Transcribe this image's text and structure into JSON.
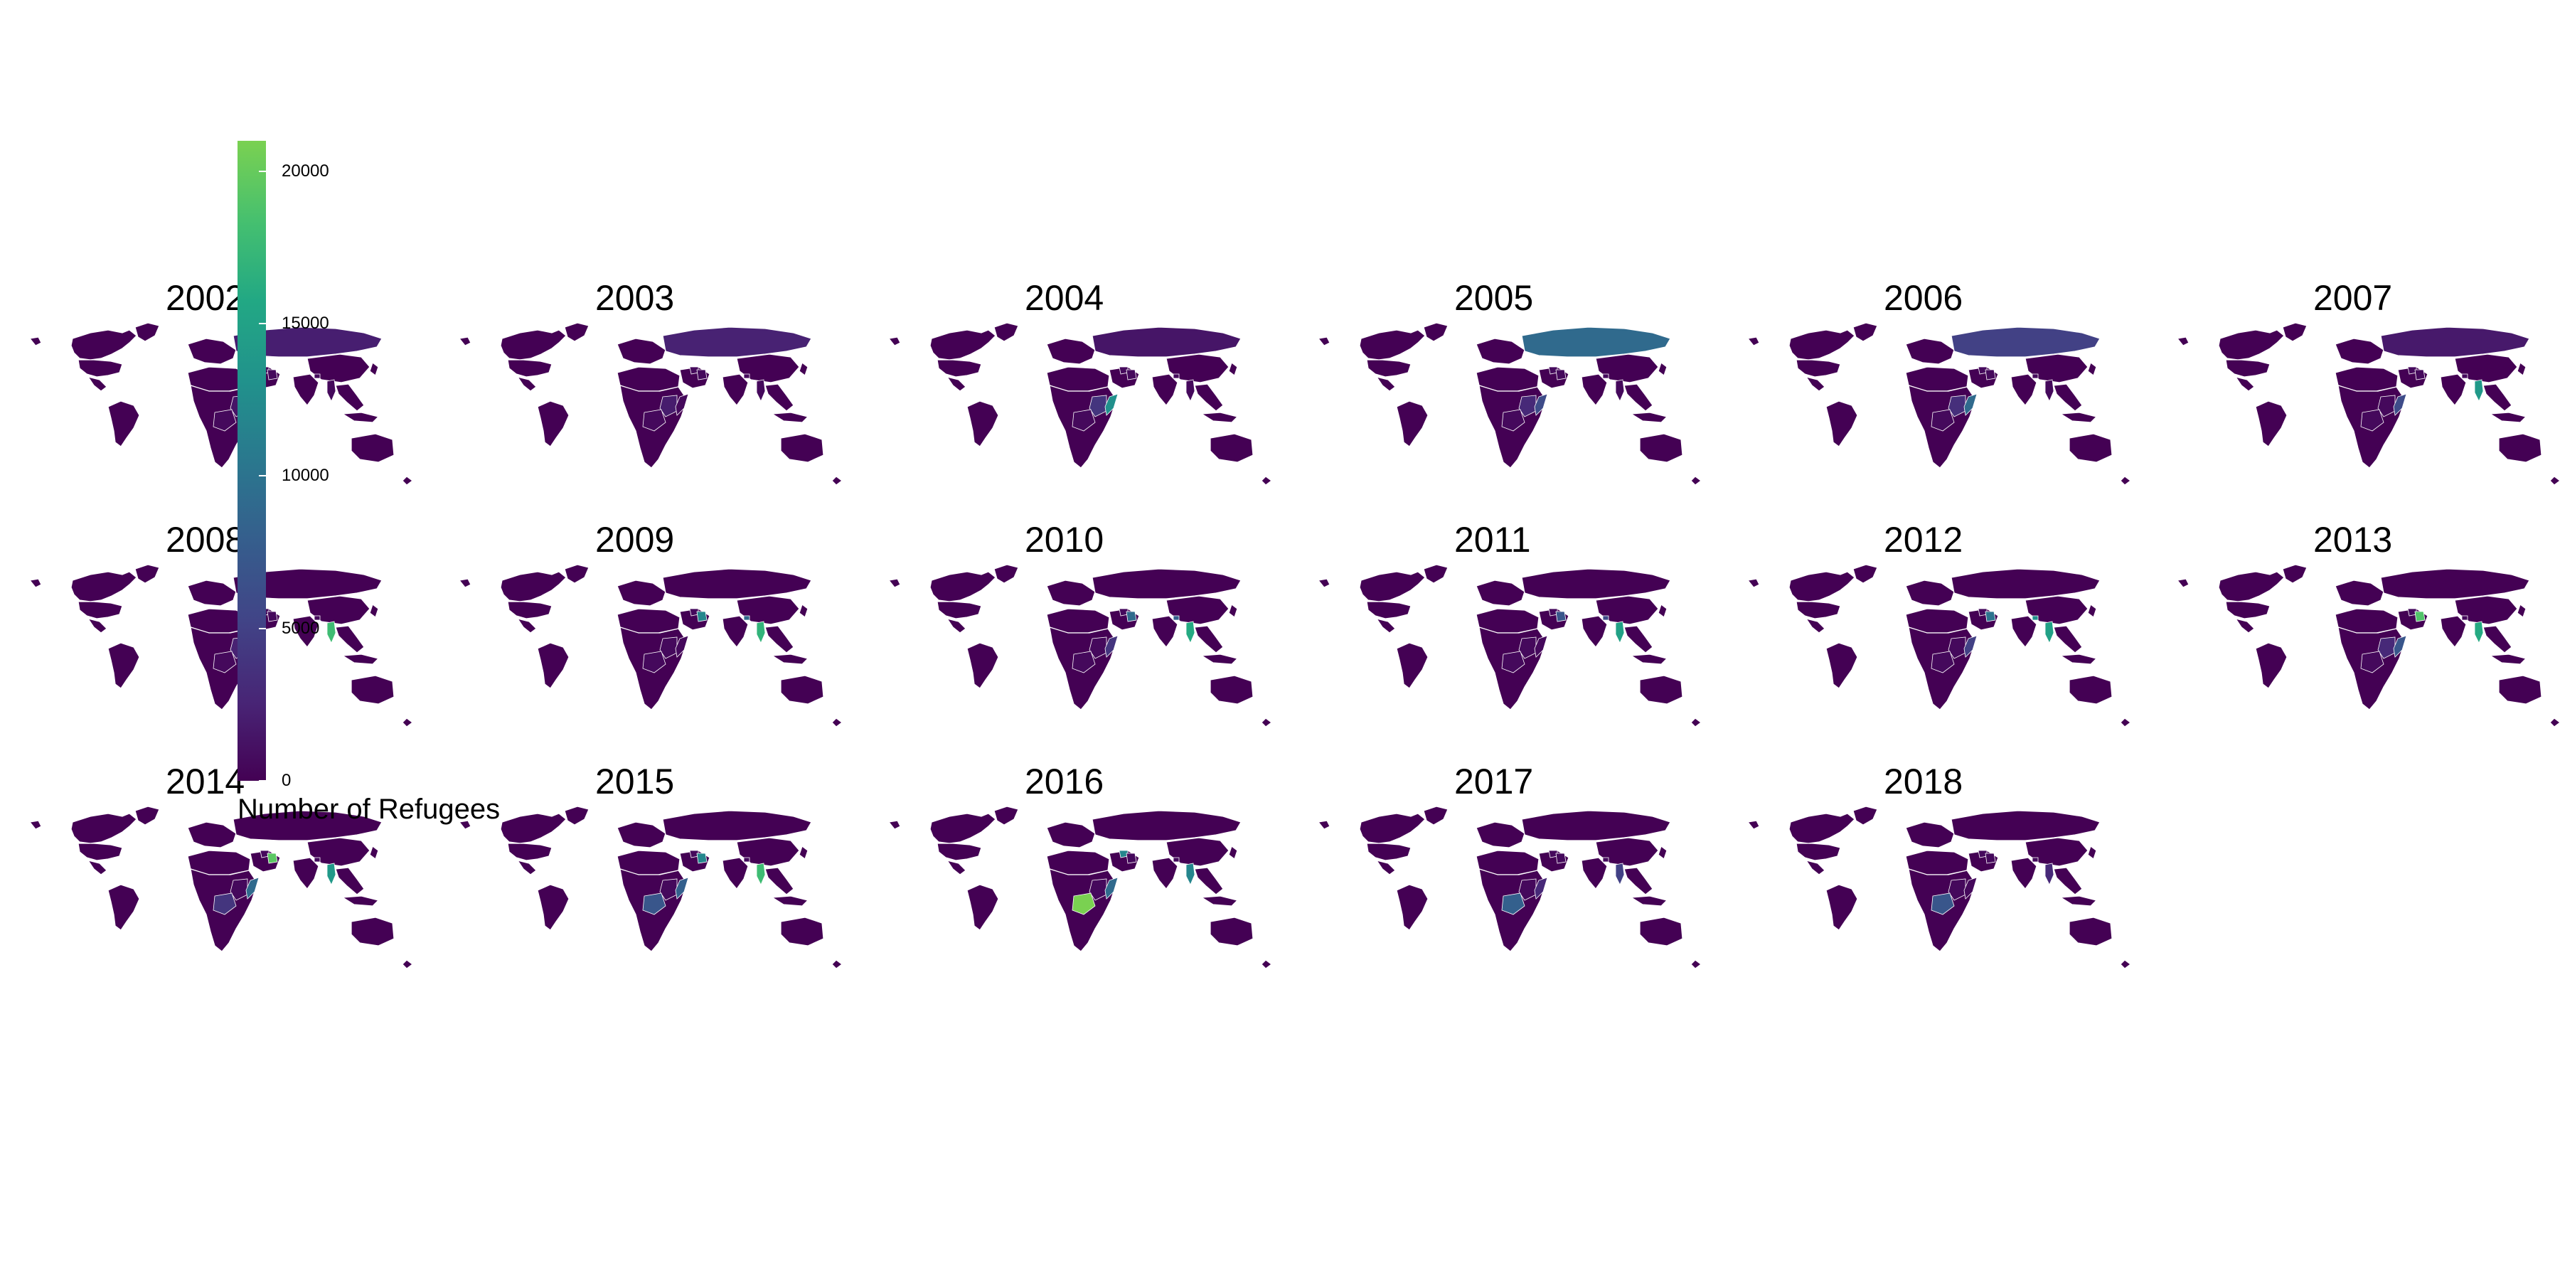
{
  "chart_data": {
    "type": "choropleth-map-small-multiples",
    "legend": {
      "title": "Number of Refugees",
      "ticks": [
        0,
        5000,
        10000,
        15000,
        20000
      ],
      "tick_labels": [
        "0",
        "5000",
        "10000",
        "15000",
        "20000"
      ],
      "range": [
        0,
        21000
      ],
      "colorscale": "viridis",
      "placement": "left, overlapping first column"
    },
    "panels": [
      {
        "year": "2002",
        "highlights": {
          "russia": 2200,
          "east_africa": 1500
        }
      },
      {
        "year": "2003",
        "highlights": {
          "russia": 2500,
          "east_africa": 2000
        }
      },
      {
        "year": "2004",
        "highlights": {
          "russia": 1500,
          "east_africa": 4000,
          "somalia": 13000
        }
      },
      {
        "year": "2005",
        "highlights": {
          "russia": 9000,
          "east_africa": 3000,
          "somalia": 6000
        }
      },
      {
        "year": "2006",
        "highlights": {
          "russia": 5000,
          "east_africa": 3500,
          "somalia": 9000
        }
      },
      {
        "year": "2007",
        "highlights": {
          "russia": 1800,
          "myanmar": 14000,
          "somalia": 6000
        }
      },
      {
        "year": "2008",
        "highlights": {
          "myanmar": 18000,
          "east_africa": 2500
        }
      },
      {
        "year": "2009",
        "highlights": {
          "myanmar": 17000,
          "iraq": 12000,
          "bhutan": 9000
        }
      },
      {
        "year": "2010",
        "highlights": {
          "myanmar": 16000,
          "iraq": 9000,
          "bhutan": 8000,
          "somalia": 4000
        }
      },
      {
        "year": "2011",
        "highlights": {
          "myanmar": 15000,
          "bhutan": 6000,
          "iraq": 7000
        }
      },
      {
        "year": "2012",
        "highlights": {
          "myanmar": 15000,
          "bhutan": 13000,
          "iraq": 10000,
          "somalia": 5000
        }
      },
      {
        "year": "2013",
        "highlights": {
          "myanmar": 16000,
          "iraq": 19000,
          "somalia": 7000,
          "east_africa": 3000
        }
      },
      {
        "year": "2014",
        "highlights": {
          "myanmar": 14000,
          "iraq": 19500,
          "somalia": 9000,
          "drc": 4000
        }
      },
      {
        "year": "2015",
        "highlights": {
          "myanmar": 18000,
          "iraq": 12000,
          "drc": 7000,
          "somalia": 8000
        }
      },
      {
        "year": "2016",
        "highlights": {
          "drc": 21000,
          "syria": 12000,
          "somalia": 9000,
          "myanmar": 12000
        }
      },
      {
        "year": "2017",
        "highlights": {
          "drc": 8000,
          "myanmar": 5000,
          "somalia": 3000
        }
      },
      {
        "year": "2018",
        "highlights": {
          "drc": 7000,
          "myanmar": 3000
        }
      }
    ]
  }
}
